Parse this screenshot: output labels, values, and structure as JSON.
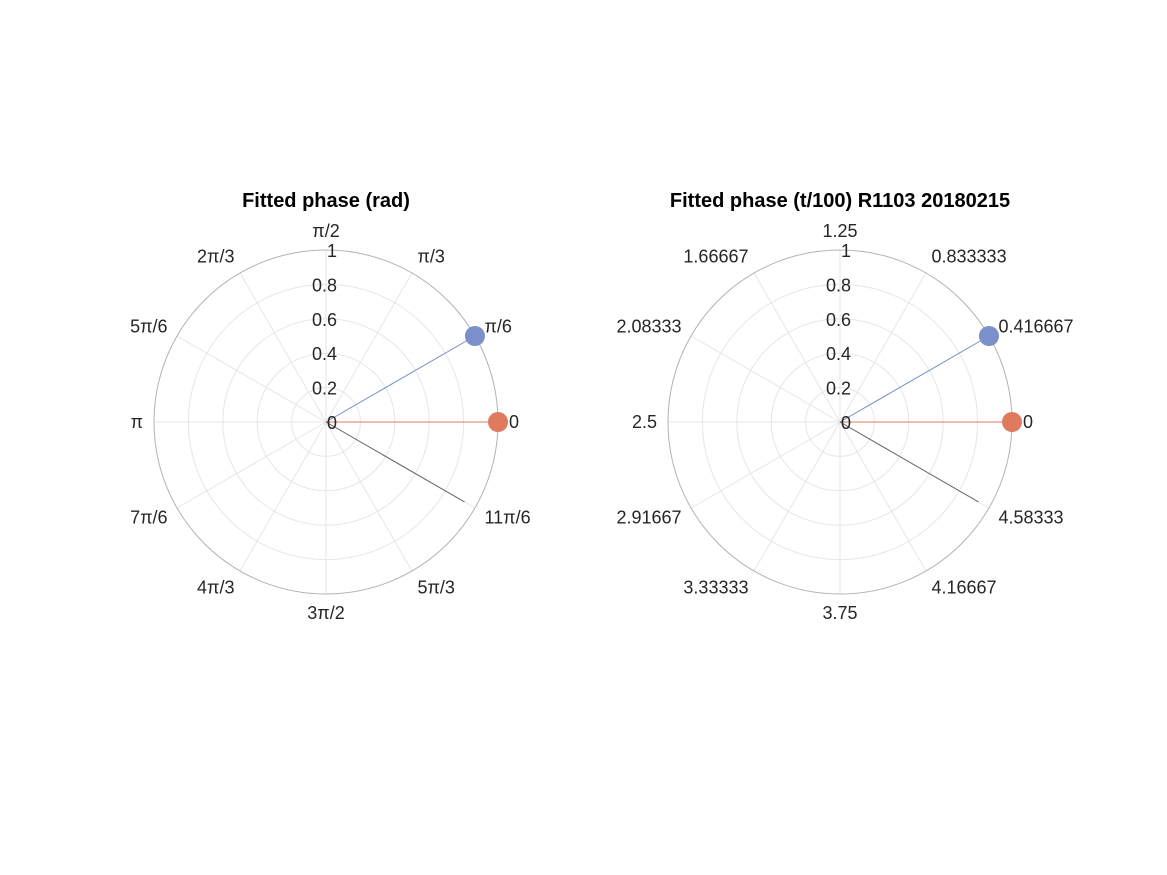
{
  "chart_data": [
    {
      "type": "polar",
      "title": "Fitted phase (rad)",
      "r_ticks": [
        "0",
        "0.2",
        "0.4",
        "0.6",
        "0.8",
        "1"
      ],
      "rlim": [
        0,
        1
      ],
      "theta_ticks": [
        "0",
        "π/6",
        "π/3",
        "π/2",
        "2π/3",
        "5π/6",
        "π",
        "7π/6",
        "4π/3",
        "3π/2",
        "5π/3",
        "11π/6"
      ],
      "grid": true,
      "series": [
        {
          "theta_deg": 0,
          "r": 1.0,
          "color": "#e07a5f",
          "marker": true
        },
        {
          "theta_deg": 30,
          "r": 1.0,
          "color": "#7b8fca",
          "marker": true
        },
        {
          "theta_deg": -30,
          "r": 0.93,
          "color": "#666666",
          "marker": false
        }
      ]
    },
    {
      "type": "polar",
      "title": "Fitted phase (t/100) R1103 20180215",
      "r_ticks": [
        "0",
        "0.2",
        "0.4",
        "0.6",
        "0.8",
        "1"
      ],
      "rlim": [
        0,
        1
      ],
      "theta_ticks": [
        "0",
        "0.416667",
        "0.833333",
        "1.25",
        "1.66667",
        "2.08333",
        "2.5",
        "2.91667",
        "3.33333",
        "3.75",
        "4.16667",
        "4.58333"
      ],
      "grid": true,
      "series": [
        {
          "theta_deg": 0,
          "r": 1.0,
          "color": "#e07a5f",
          "marker": true
        },
        {
          "theta_deg": 30,
          "r": 1.0,
          "color": "#7b8fca",
          "marker": true
        },
        {
          "theta_deg": -30,
          "r": 0.93,
          "color": "#666666",
          "marker": false
        }
      ]
    }
  ]
}
